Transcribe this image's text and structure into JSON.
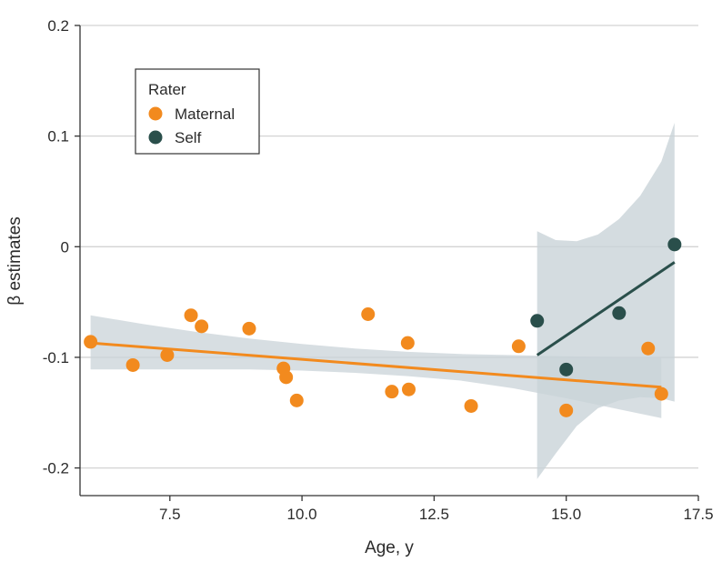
{
  "chart_data": {
    "type": "scatter",
    "title": "",
    "xlabel": "Age, y",
    "ylabel": "β estimates",
    "xlim": [
      5.8,
      17.5
    ],
    "ylim": [
      -0.225,
      0.2
    ],
    "x_ticks": [
      7.5,
      10.0,
      12.5,
      15.0,
      17.5
    ],
    "x_tick_labels": [
      "7.5",
      "10.0",
      "12.5",
      "15.0",
      "17.5"
    ],
    "y_ticks": [
      0.2,
      0.1,
      0,
      -0.1,
      -0.2
    ],
    "y_tick_labels": [
      "0.2",
      "0.1",
      "0",
      "-0.1",
      "-0.2"
    ],
    "grid": "horizontal",
    "legend": {
      "title": "Rater",
      "position": "top-left",
      "entries": [
        "Maternal",
        "Self"
      ]
    },
    "series": [
      {
        "name": "Maternal",
        "color": "#f28a1e",
        "points": [
          {
            "x": 6.0,
            "y": -0.086
          },
          {
            "x": 6.8,
            "y": -0.107
          },
          {
            "x": 7.45,
            "y": -0.098
          },
          {
            "x": 7.9,
            "y": -0.062
          },
          {
            "x": 8.1,
            "y": -0.072
          },
          {
            "x": 9.0,
            "y": -0.074
          },
          {
            "x": 9.65,
            "y": -0.11
          },
          {
            "x": 9.7,
            "y": -0.118
          },
          {
            "x": 9.9,
            "y": -0.139
          },
          {
            "x": 11.25,
            "y": -0.061
          },
          {
            "x": 11.7,
            "y": -0.131
          },
          {
            "x": 12.0,
            "y": -0.087
          },
          {
            "x": 12.02,
            "y": -0.129
          },
          {
            "x": 13.2,
            "y": -0.144
          },
          {
            "x": 14.1,
            "y": -0.09
          },
          {
            "x": 15.0,
            "y": -0.148
          },
          {
            "x": 16.55,
            "y": -0.092
          },
          {
            "x": 16.8,
            "y": -0.133
          }
        ],
        "fit_line": {
          "x": [
            6.0,
            16.8
          ],
          "y": [
            -0.087,
            -0.127
          ]
        },
        "ci_band": {
          "x": [
            6.0,
            7.0,
            8.0,
            9.0,
            10.0,
            11.0,
            12.0,
            13.0,
            14.0,
            15.0,
            16.0,
            16.8
          ],
          "lower": [
            -0.111,
            -0.111,
            -0.111,
            -0.111,
            -0.112,
            -0.114,
            -0.117,
            -0.121,
            -0.128,
            -0.137,
            -0.147,
            -0.155
          ],
          "upper": [
            -0.062,
            -0.07,
            -0.077,
            -0.083,
            -0.088,
            -0.092,
            -0.095,
            -0.097,
            -0.098,
            -0.099,
            -0.1,
            -0.1
          ]
        }
      },
      {
        "name": "Self",
        "color": "#2a4f4b",
        "points": [
          {
            "x": 14.45,
            "y": -0.067
          },
          {
            "x": 15.0,
            "y": -0.111
          },
          {
            "x": 16.0,
            "y": -0.06
          },
          {
            "x": 17.05,
            "y": 0.002
          }
        ],
        "fit_line": {
          "x": [
            14.45,
            17.05
          ],
          "y": [
            -0.098,
            -0.014
          ]
        },
        "ci_band": {
          "x": [
            14.45,
            14.8,
            15.2,
            15.6,
            16.0,
            16.4,
            16.8,
            17.05
          ],
          "lower": [
            -0.21,
            -0.187,
            -0.162,
            -0.146,
            -0.139,
            -0.136,
            -0.137,
            -0.14
          ],
          "upper": [
            0.014,
            0.006,
            0.005,
            0.011,
            0.025,
            0.046,
            0.077,
            0.112
          ]
        }
      }
    ]
  },
  "style": {
    "band_color": "#c9d3d8",
    "grid_color": "#d3d3d3",
    "axis_color": "#333333"
  }
}
